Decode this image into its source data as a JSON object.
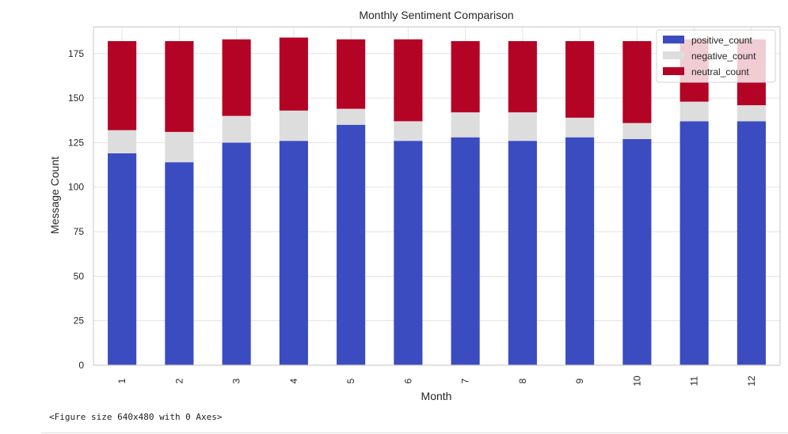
{
  "chart_data": {
    "type": "bar",
    "stacked": true,
    "title": "Monthly Sentiment Comparison",
    "xlabel": "Month",
    "ylabel": "Message Count",
    "categories": [
      "1",
      "2",
      "3",
      "4",
      "5",
      "6",
      "7",
      "8",
      "9",
      "10",
      "11",
      "12"
    ],
    "series": [
      {
        "name": "positive_count",
        "color": "#3b4cc0",
        "values": [
          119,
          114,
          125,
          126,
          135,
          126,
          128,
          126,
          128,
          127,
          137,
          137
        ]
      },
      {
        "name": "negative_count",
        "color": "#dddddd",
        "values": [
          13,
          17,
          15,
          17,
          9,
          11,
          14,
          16,
          11,
          9,
          11,
          9
        ]
      },
      {
        "name": "neutral_count",
        "color": "#b40426",
        "values": [
          50,
          51,
          43,
          41,
          39,
          46,
          40,
          40,
          43,
          46,
          35,
          37
        ]
      }
    ],
    "ylim": [
      0,
      190
    ],
    "yticks": [
      0,
      25,
      50,
      75,
      100,
      125,
      150,
      175
    ],
    "grid": true,
    "legend_position": "top-right"
  },
  "figure_note": "<Figure size 640x480 with 0 Axes>"
}
